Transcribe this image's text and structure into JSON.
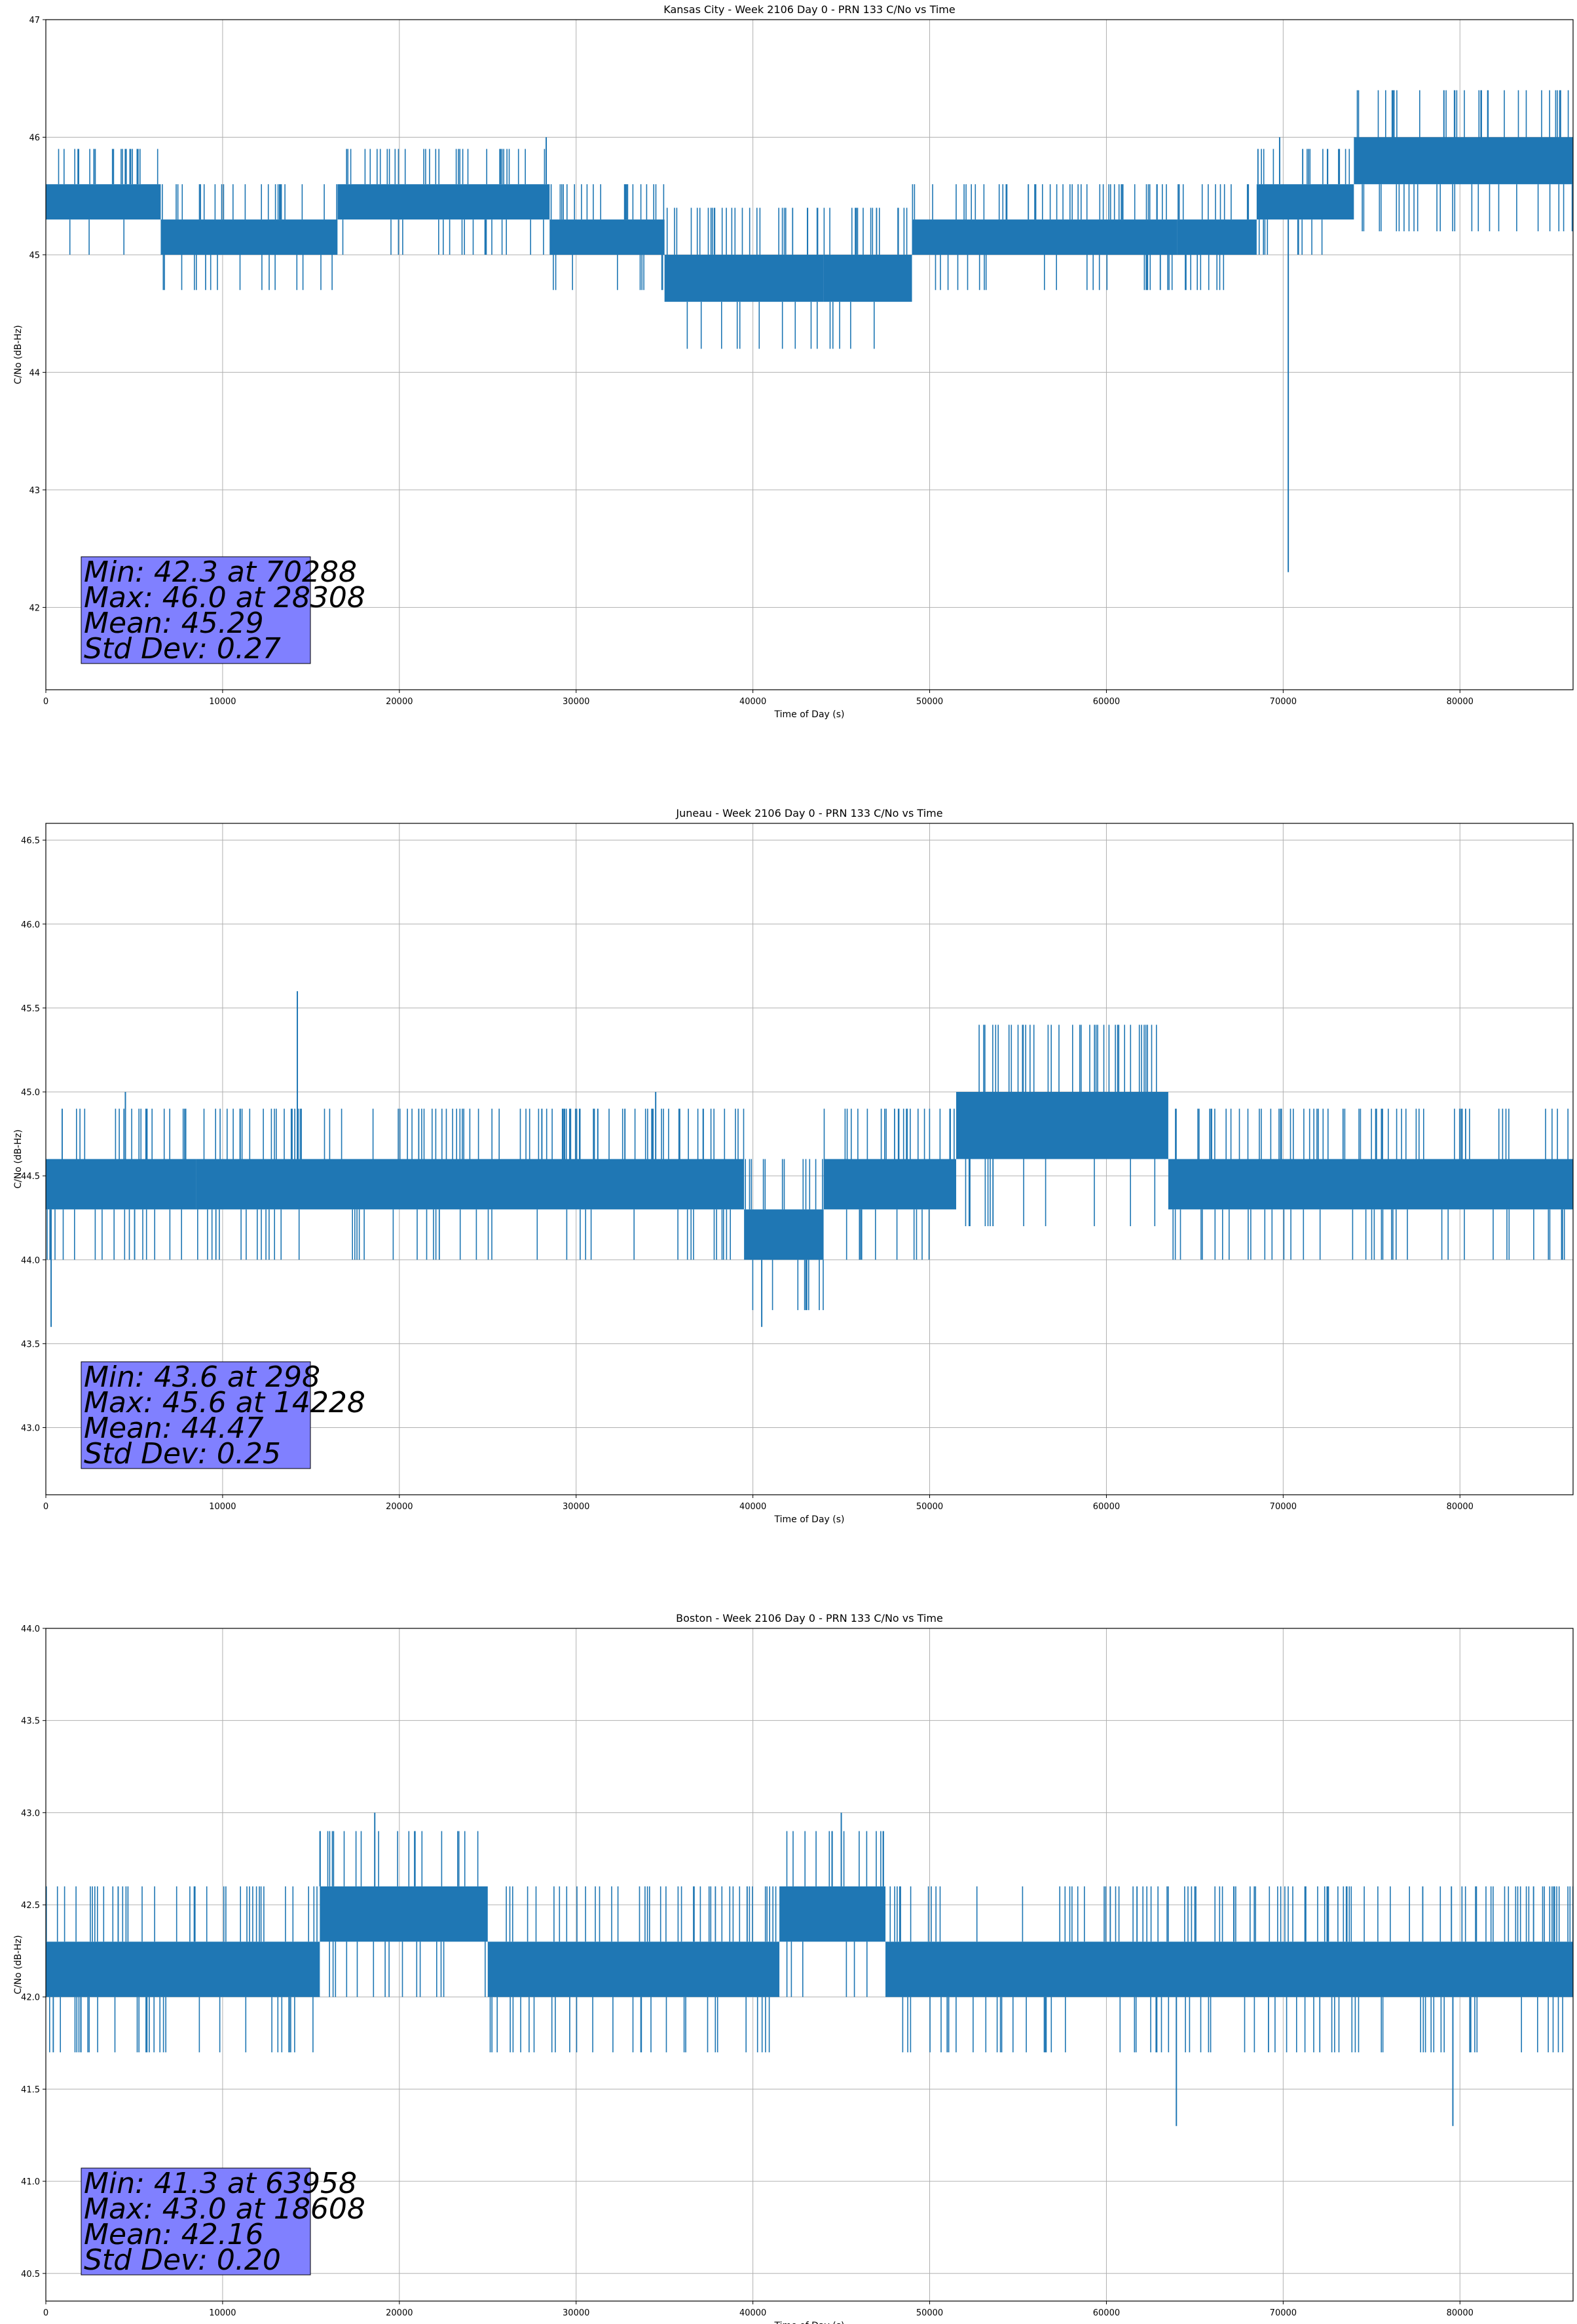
{
  "colors": {
    "line": "#1f77b4",
    "stats_box": "#8080ff",
    "grid": "#b0b0b0"
  },
  "chart_data": [
    {
      "type": "line",
      "title": "Kansas City - Week 2106 Day 0 - PRN 133 C/No vs Time",
      "xlabel": "Time of Day (s)",
      "ylabel": "C/No (dB-Hz)",
      "xlim": [
        0,
        86400
      ],
      "ylim": [
        41.3,
        47.0
      ],
      "xticks": [
        0,
        10000,
        20000,
        30000,
        40000,
        50000,
        60000,
        70000,
        80000
      ],
      "yticks": [
        42,
        43,
        44,
        45,
        46,
        47
      ],
      "ytick_labels": [
        "42",
        "43",
        "44",
        "45",
        "46",
        "47"
      ],
      "grid": true,
      "bands": [
        {
          "x": [
            0,
            6500
          ],
          "y": [
            45.3,
            45.6
          ]
        },
        {
          "x": [
            6500,
            16500
          ],
          "y": [
            45.0,
            45.3
          ]
        },
        {
          "x": [
            16500,
            28500
          ],
          "y": [
            45.3,
            45.6
          ]
        },
        {
          "x": [
            28500,
            35000
          ],
          "y": [
            45.0,
            45.3
          ]
        },
        {
          "x": [
            35000,
            44000
          ],
          "y": [
            44.6,
            45.0
          ]
        },
        {
          "x": [
            44000,
            49000
          ],
          "y": [
            44.6,
            45.0
          ]
        },
        {
          "x": [
            49000,
            64000
          ],
          "y": [
            45.0,
            45.3
          ]
        },
        {
          "x": [
            64000,
            68500
          ],
          "y": [
            45.0,
            45.3
          ]
        },
        {
          "x": [
            68500,
            74000
          ],
          "y": [
            45.3,
            45.6
          ]
        },
        {
          "x": [
            74000,
            86400
          ],
          "y": [
            45.6,
            46.0
          ]
        }
      ],
      "spikes": [
        {
          "x": 28308,
          "y": 46.0
        },
        {
          "x": 70288,
          "y": 42.3
        },
        {
          "x": 69800,
          "y": 46.0
        }
      ],
      "stats": {
        "min": "Min: 42.3 at 70288",
        "max": "Max: 46.0 at 28308",
        "mean": "Mean: 45.29",
        "std": "Std Dev: 0.27"
      }
    },
    {
      "type": "line",
      "title": "Juneau - Week 2106 Day 0 - PRN 133 C/No vs Time",
      "xlabel": "Time of Day (s)",
      "ylabel": "C/No (dB-Hz)",
      "xlim": [
        0,
        86400
      ],
      "ylim": [
        42.6,
        46.6
      ],
      "xticks": [
        0,
        10000,
        20000,
        30000,
        40000,
        50000,
        60000,
        70000,
        80000
      ],
      "yticks": [
        43.0,
        43.5,
        44.0,
        44.5,
        45.0,
        45.5,
        46.0,
        46.5
      ],
      "ytick_labels": [
        "43.0",
        "43.5",
        "44.0",
        "44.5",
        "45.0",
        "45.5",
        "46.0",
        "46.5"
      ],
      "grid": true,
      "bands": [
        {
          "x": [
            0,
            8500
          ],
          "y": [
            44.3,
            44.6
          ]
        },
        {
          "x": [
            8500,
            39500
          ],
          "y": [
            44.3,
            44.6
          ]
        },
        {
          "x": [
            39500,
            44000
          ],
          "y": [
            44.0,
            44.3
          ]
        },
        {
          "x": [
            44000,
            51500
          ],
          "y": [
            44.3,
            44.6
          ]
        },
        {
          "x": [
            51500,
            63500
          ],
          "y": [
            44.6,
            45.0
          ]
        },
        {
          "x": [
            63500,
            86400
          ],
          "y": [
            44.3,
            44.6
          ]
        }
      ],
      "spikes": [
        {
          "x": 14228,
          "y": 45.6
        },
        {
          "x": 298,
          "y": 43.6
        },
        {
          "x": 40500,
          "y": 43.6
        },
        {
          "x": 4500,
          "y": 45.0
        },
        {
          "x": 34500,
          "y": 45.0
        }
      ],
      "stats": {
        "min": "Min: 43.6 at 298",
        "max": "Max: 45.6 at 14228",
        "mean": "Mean: 44.47",
        "std": "Std Dev: 0.25"
      }
    },
    {
      "type": "line",
      "title": "Boston - Week 2106 Day 0 - PRN 133 C/No vs Time",
      "xlabel": "Time of Day (s)",
      "ylabel": "C/No (dB-Hz)",
      "xlim": [
        0,
        86400
      ],
      "ylim": [
        40.35,
        44.0
      ],
      "xticks": [
        0,
        10000,
        20000,
        30000,
        40000,
        50000,
        60000,
        70000,
        80000
      ],
      "yticks": [
        40.5,
        41.0,
        41.5,
        42.0,
        42.5,
        43.0,
        43.5,
        44.0
      ],
      "ytick_labels": [
        "40.5",
        "41.0",
        "41.5",
        "42.0",
        "42.5",
        "43.0",
        "43.5",
        "44.0"
      ],
      "grid": true,
      "bands": [
        {
          "x": [
            0,
            15500
          ],
          "y": [
            42.0,
            42.3
          ]
        },
        {
          "x": [
            15500,
            25000
          ],
          "y": [
            42.3,
            42.6
          ]
        },
        {
          "x": [
            25000,
            41500
          ],
          "y": [
            42.0,
            42.3
          ]
        },
        {
          "x": [
            41500,
            47500
          ],
          "y": [
            42.3,
            42.6
          ]
        },
        {
          "x": [
            47500,
            86400
          ],
          "y": [
            42.0,
            42.3
          ]
        }
      ],
      "spikes": [
        {
          "x": 18608,
          "y": 43.0
        },
        {
          "x": 45000,
          "y": 43.0
        },
        {
          "x": 63958,
          "y": 41.3
        },
        {
          "x": 79600,
          "y": 41.3
        }
      ],
      "stats": {
        "min": "Min: 41.3 at 63958",
        "max": "Max: 43.0 at 18608",
        "mean": "Mean: 42.16",
        "std": "Std Dev: 0.20"
      }
    }
  ]
}
